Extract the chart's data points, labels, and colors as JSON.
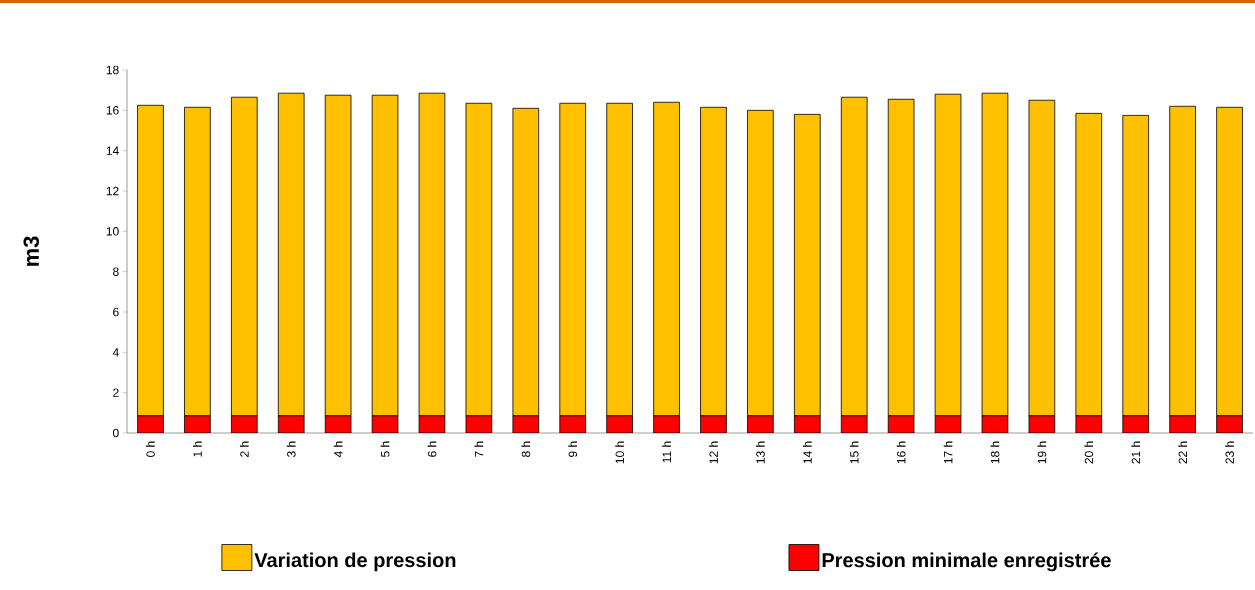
{
  "chart_data": {
    "type": "bar",
    "stacked": true,
    "ylabel": "m3",
    "categories": [
      "0 h",
      "1 h",
      "2 h",
      "3 h",
      "4 h",
      "5 h",
      "6 h",
      "7 h",
      "8 h",
      "9 h",
      "10 h",
      "11 h",
      "12 h",
      "13 h",
      "14 h",
      "15 h",
      "16 h",
      "17 h",
      "18 h",
      "19 h",
      "20 h",
      "21 h",
      "22 h",
      "23 h"
    ],
    "series": [
      {
        "name": "Pression minimale enregistrée",
        "color": "#ff0000",
        "values": [
          0.85,
          0.85,
          0.85,
          0.85,
          0.85,
          0.85,
          0.85,
          0.85,
          0.85,
          0.85,
          0.85,
          0.85,
          0.85,
          0.85,
          0.85,
          0.85,
          0.85,
          0.85,
          0.85,
          0.85,
          0.85,
          0.85,
          0.85,
          0.85
        ]
      },
      {
        "name": "Variation de pression",
        "color": "#ffc000",
        "values": [
          15.4,
          15.3,
          15.8,
          16.0,
          15.9,
          15.9,
          16.0,
          15.5,
          15.25,
          15.5,
          15.5,
          15.55,
          15.3,
          15.15,
          14.95,
          15.8,
          15.7,
          15.95,
          16.0,
          15.65,
          15.0,
          14.9,
          15.35,
          15.3
        ]
      }
    ],
    "ylim": [
      0,
      18
    ],
    "yticks": [
      0,
      2,
      4,
      6,
      8,
      10,
      12,
      14,
      16,
      18
    ],
    "grid": false,
    "legend": "bottom"
  }
}
